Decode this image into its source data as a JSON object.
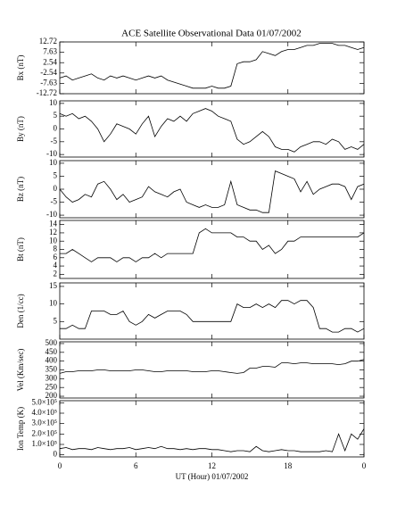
{
  "title": "ACE Satellite Observational Data  01/07/2002",
  "chart_data": [
    {
      "type": "line",
      "ylabel": "Bx (nT)",
      "color": "#000000",
      "x": [
        0,
        0.5,
        1,
        1.5,
        2,
        2.5,
        3,
        3.5,
        4,
        4.5,
        5,
        5.5,
        6,
        6.5,
        7,
        7.5,
        8,
        8.5,
        9,
        9.5,
        10,
        10.5,
        11,
        11.5,
        12,
        12.5,
        13,
        13.5,
        14,
        14.5,
        15,
        15.5,
        16,
        16.5,
        17,
        17.5,
        18,
        18.5,
        19,
        19.5,
        20,
        20.5,
        21,
        21.5,
        22,
        22.5,
        23,
        23.5,
        24
      ],
      "values": [
        -5,
        -4,
        -6,
        -5,
        -4,
        -3,
        -5,
        -6,
        -4,
        -5,
        -4,
        -5,
        -6,
        -5,
        -4,
        -5,
        -4,
        -6,
        -7,
        -8,
        -9,
        -10,
        -10,
        -10,
        -9,
        -10,
        -10,
        -9,
        2,
        3,
        3,
        4,
        8,
        7,
        6,
        8,
        9,
        9,
        10,
        11,
        11,
        12,
        12,
        12,
        11,
        11,
        10,
        9,
        10
      ],
      "xlim": [
        0,
        24
      ],
      "ylim": [
        -12.72,
        12.72
      ],
      "yticks": [
        12.72,
        7.63,
        2.54,
        -2.54,
        -7.63,
        -12.72
      ]
    },
    {
      "type": "line",
      "ylabel": "By (nT)",
      "color": "#000000",
      "x": [
        0,
        0.5,
        1,
        1.5,
        2,
        2.5,
        3,
        3.5,
        4,
        4.5,
        5,
        5.5,
        6,
        6.5,
        7,
        7.5,
        8,
        8.5,
        9,
        9.5,
        10,
        10.5,
        11,
        11.5,
        12,
        12.5,
        13,
        13.5,
        14,
        14.5,
        15,
        15.5,
        16,
        16.5,
        17,
        17.5,
        18,
        18.5,
        19,
        19.5,
        20,
        20.5,
        21,
        21.5,
        22,
        22.5,
        23,
        23.5,
        24
      ],
      "values": [
        6,
        5,
        6,
        4,
        5,
        3,
        0,
        -5,
        -2,
        2,
        1,
        0,
        -2,
        2,
        5,
        -3,
        1,
        4,
        3,
        5,
        3,
        6,
        7,
        8,
        7,
        5,
        4,
        3,
        -4,
        -6,
        -5,
        -3,
        -1,
        -3,
        -7,
        -8,
        -8,
        -9,
        -7,
        -6,
        -5,
        -5,
        -6,
        -4,
        -5,
        -8,
        -7,
        -8,
        -6
      ],
      "xlim": [
        0,
        24
      ],
      "ylim": [
        -11,
        11
      ],
      "yticks": [
        10,
        5,
        0,
        -5,
        -10
      ]
    },
    {
      "type": "line",
      "ylabel": "Bz (nT)",
      "color": "#000000",
      "x": [
        0,
        0.5,
        1,
        1.5,
        2,
        2.5,
        3,
        3.5,
        4,
        4.5,
        5,
        5.5,
        6,
        6.5,
        7,
        7.5,
        8,
        8.5,
        9,
        9.5,
        10,
        10.5,
        11,
        11.5,
        12,
        12.5,
        13,
        13.5,
        14,
        14.5,
        15,
        15.5,
        16,
        16.5,
        17,
        17.5,
        18,
        18.5,
        19,
        19.5,
        20,
        20.5,
        21,
        21.5,
        22,
        22.5,
        23,
        23.5,
        24
      ],
      "values": [
        0,
        -3,
        -5,
        -4,
        -2,
        -3,
        2,
        3,
        0,
        -4,
        -2,
        -5,
        -4,
        -3,
        1,
        -1,
        -2,
        -3,
        -1,
        0,
        -5,
        -6,
        -7,
        -6,
        -7,
        -7,
        -6,
        3,
        -6,
        -7,
        -8,
        -8,
        -9,
        -9,
        7,
        6,
        5,
        4,
        -1,
        3,
        -2,
        0,
        1,
        2,
        2,
        1,
        -4,
        1,
        2
      ],
      "xlim": [
        0,
        24
      ],
      "ylim": [
        -11,
        11
      ],
      "yticks": [
        10,
        5,
        0,
        -5,
        -10
      ]
    },
    {
      "type": "line",
      "ylabel": "Bt (nT)",
      "color": "#000000",
      "x": [
        0,
        0.5,
        1,
        1.5,
        2,
        2.5,
        3,
        3.5,
        4,
        4.5,
        5,
        5.5,
        6,
        6.5,
        7,
        7.5,
        8,
        8.5,
        9,
        9.5,
        10,
        10.5,
        11,
        11.5,
        12,
        12.5,
        13,
        13.5,
        14,
        14.5,
        15,
        15.5,
        16,
        16.5,
        17,
        17.5,
        18,
        18.5,
        19,
        19.5,
        20,
        20.5,
        21,
        21.5,
        22,
        22.5,
        23,
        23.5,
        24
      ],
      "values": [
        7,
        7,
        8,
        7,
        6,
        5,
        6,
        6,
        6,
        5,
        6,
        6,
        5,
        6,
        6,
        7,
        6,
        7,
        7,
        7,
        7,
        7,
        12,
        13,
        12,
        12,
        12,
        12,
        11,
        11,
        10,
        10,
        8,
        9,
        7,
        8,
        10,
        10,
        11,
        11,
        11,
        11,
        11,
        11,
        11,
        11,
        11,
        11,
        12
      ],
      "xlim": [
        0,
        24
      ],
      "ylim": [
        1,
        15
      ],
      "yticks": [
        14,
        12,
        10,
        8,
        6,
        4,
        2
      ]
    },
    {
      "type": "line",
      "ylabel": "Den (1/cc)",
      "color": "#000000",
      "x": [
        0,
        0.5,
        1,
        1.5,
        2,
        2.5,
        3,
        3.5,
        4,
        4.5,
        5,
        5.5,
        6,
        6.5,
        7,
        7.5,
        8,
        8.5,
        9,
        9.5,
        10,
        10.5,
        11,
        11.5,
        12,
        12.5,
        13,
        13.5,
        14,
        14.5,
        15,
        15.5,
        16,
        16.5,
        17,
        17.5,
        18,
        18.5,
        19,
        19.5,
        20,
        20.5,
        21,
        21.5,
        22,
        22.5,
        23,
        23.5,
        24
      ],
      "values": [
        3,
        3,
        4,
        3,
        3,
        8,
        8,
        8,
        7,
        7,
        8,
        5,
        4,
        5,
        7,
        6,
        7,
        8,
        8,
        8,
        7,
        5,
        5,
        5,
        5,
        5,
        5,
        5,
        10,
        9,
        9,
        10,
        9,
        10,
        9,
        11,
        11,
        10,
        11,
        11,
        9,
        3,
        3,
        2,
        2,
        3,
        3,
        2,
        3
      ],
      "xlim": [
        0,
        24
      ],
      "ylim": [
        0,
        16
      ],
      "yticks": [
        15,
        10,
        5
      ]
    },
    {
      "type": "line",
      "ylabel": "Vel (Km/sec)",
      "color": "#000000",
      "x": [
        0,
        0.5,
        1,
        1.5,
        2,
        2.5,
        3,
        3.5,
        4,
        4.5,
        5,
        5.5,
        6,
        6.5,
        7,
        7.5,
        8,
        8.5,
        9,
        9.5,
        10,
        10.5,
        11,
        11.5,
        12,
        12.5,
        13,
        13.5,
        14,
        14.5,
        15,
        15.5,
        16,
        16.5,
        17,
        17.5,
        18,
        18.5,
        19,
        19.5,
        20,
        20.5,
        21,
        21.5,
        22,
        22.5,
        23,
        23.5,
        24
      ],
      "values": [
        330,
        340,
        340,
        345,
        345,
        345,
        350,
        350,
        345,
        345,
        345,
        345,
        350,
        350,
        345,
        340,
        340,
        345,
        345,
        345,
        345,
        340,
        340,
        340,
        345,
        345,
        340,
        335,
        330,
        335,
        360,
        360,
        370,
        370,
        365,
        390,
        390,
        385,
        390,
        390,
        385,
        385,
        385,
        385,
        380,
        385,
        400,
        400,
        410
      ],
      "xlim": [
        0,
        24
      ],
      "ylim": [
        190,
        510
      ],
      "yticks": [
        500,
        450,
        400,
        350,
        300,
        250,
        200
      ]
    },
    {
      "type": "line",
      "ylabel": "Ion Temp (K)",
      "xlabel": "UT (Hour)  01/07/2002",
      "color": "#000000",
      "x": [
        0,
        0.5,
        1,
        1.5,
        2,
        2.5,
        3,
        3.5,
        4,
        4.5,
        5,
        5.5,
        6,
        6.5,
        7,
        7.5,
        8,
        8.5,
        9,
        9.5,
        10,
        10.5,
        11,
        11.5,
        12,
        12.5,
        13,
        13.5,
        14,
        14.5,
        15,
        15.5,
        16,
        16.5,
        17,
        17.5,
        18,
        18.5,
        19,
        19.5,
        20,
        20.5,
        21,
        21.5,
        22,
        22.5,
        23,
        23.5,
        24
      ],
      "values": [
        60000,
        70000,
        50000,
        60000,
        60000,
        50000,
        70000,
        60000,
        50000,
        60000,
        60000,
        70000,
        50000,
        60000,
        70000,
        60000,
        80000,
        60000,
        60000,
        50000,
        60000,
        50000,
        60000,
        60000,
        50000,
        50000,
        40000,
        30000,
        40000,
        40000,
        30000,
        80000,
        40000,
        30000,
        40000,
        50000,
        40000,
        40000,
        30000,
        30000,
        30000,
        30000,
        40000,
        30000,
        200000,
        40000,
        200000,
        150000,
        250000
      ],
      "xlim": [
        0,
        24
      ],
      "ylim": [
        -20000,
        520000
      ],
      "yticks": [
        {
          "value": 500000,
          "label": "5.0×10⁵"
        },
        {
          "value": 400000,
          "label": "4.0×10⁵"
        },
        {
          "value": 300000,
          "label": "3.0×10⁵"
        },
        {
          "value": 200000,
          "label": "2.0×10⁵"
        },
        {
          "value": 100000,
          "label": "1.0×10⁵"
        },
        0
      ],
      "xticks": [
        0,
        6,
        12,
        18,
        {
          "value": 24,
          "label": "0"
        }
      ]
    }
  ]
}
